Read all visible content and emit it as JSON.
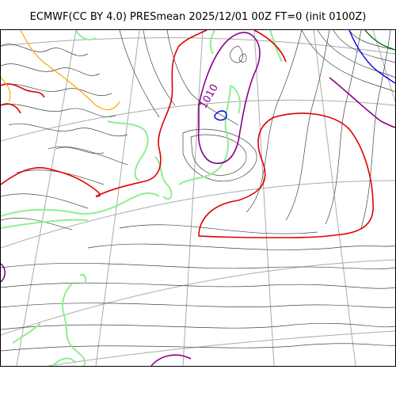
{
  "title": "ECMWF(CC BY 4.0) PRESmean 2025/12/01 00Z FT=0 (init 0100Z)",
  "contour_label": "1010",
  "colors": {
    "isobar": "#444444",
    "graticule": "#aaaaaa",
    "coastline": "#90ee90",
    "contour_red": "#e00000",
    "contour_purple": "#880088",
    "contour_blue": "#0000ee",
    "contour_orange": "#ffa500",
    "contour_green": "#007700"
  }
}
